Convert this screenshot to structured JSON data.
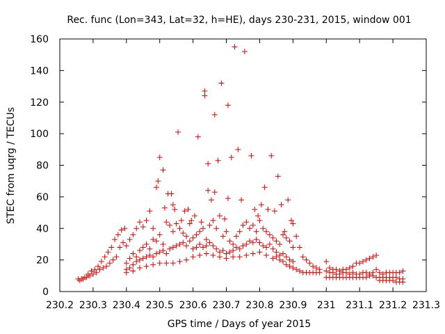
{
  "chart_data": {
    "type": "scatter",
    "title": "Rec. func (Lon=343, Lat=32, h=HE), days 230-231, 2015, window 001",
    "xlabel": "GPS time / Days of year 2015",
    "ylabel": "STEC from uqrg / TECUs",
    "xlim": [
      230.2,
      231.3
    ],
    "ylim": [
      0,
      160
    ],
    "xticks": [
      230.2,
      230.3,
      230.4,
      230.5,
      230.6,
      230.7,
      230.8,
      230.9,
      231,
      231.1,
      231.2,
      231.3
    ],
    "xtick_labels": [
      "230.2",
      "230.3",
      "230.4",
      "230.5",
      "230.6",
      "230.7",
      "230.8",
      "230.9",
      "231",
      "231.1",
      "231.2",
      "231.3"
    ],
    "yticks": [
      0,
      20,
      40,
      60,
      80,
      100,
      120,
      140,
      160
    ],
    "ytick_labels": [
      "0",
      "20",
      "40",
      "60",
      "80",
      "100",
      "120",
      "140",
      "160"
    ],
    "grid": false,
    "legend": "none",
    "marker": "+",
    "series": [
      {
        "color": "#e00000",
        "points": [
          [
            230.255,
            8
          ],
          [
            230.265,
            8
          ],
          [
            230.275,
            9
          ],
          [
            230.285,
            11
          ],
          [
            230.295,
            13
          ],
          [
            230.305,
            14
          ],
          [
            230.315,
            16
          ],
          [
            230.325,
            19
          ],
          [
            230.335,
            22
          ],
          [
            230.345,
            25
          ],
          [
            230.355,
            28
          ],
          [
            230.365,
            33
          ],
          [
            230.375,
            36
          ],
          [
            230.385,
            39
          ],
          [
            230.395,
            40
          ],
          [
            230.26,
            7
          ],
          [
            230.27,
            8
          ],
          [
            230.28,
            9
          ],
          [
            230.29,
            10
          ],
          [
            230.3,
            11
          ],
          [
            230.31,
            12
          ],
          [
            230.32,
            14
          ],
          [
            230.33,
            15
          ],
          [
            230.34,
            16
          ],
          [
            230.35,
            18
          ],
          [
            230.36,
            20
          ],
          [
            230.37,
            22
          ],
          [
            230.38,
            28
          ],
          [
            230.39,
            31
          ],
          [
            230.4,
            29
          ],
          [
            230.41,
            33
          ],
          [
            230.42,
            36
          ],
          [
            230.43,
            40
          ],
          [
            230.44,
            44
          ],
          [
            230.45,
            41
          ],
          [
            230.46,
            45
          ],
          [
            230.47,
            51
          ],
          [
            230.48,
            40
          ],
          [
            230.49,
            66
          ],
          [
            230.495,
            70
          ],
          [
            230.5,
            85
          ],
          [
            230.51,
            77
          ],
          [
            230.515,
            53
          ],
          [
            230.525,
            62
          ],
          [
            230.535,
            62
          ],
          [
            230.54,
            55
          ],
          [
            230.545,
            52
          ],
          [
            230.555,
            101
          ],
          [
            230.565,
            45
          ],
          [
            230.575,
            51
          ],
          [
            230.585,
            52
          ],
          [
            230.4,
            18
          ],
          [
            230.41,
            21
          ],
          [
            230.42,
            24
          ],
          [
            230.43,
            22
          ],
          [
            230.44,
            26
          ],
          [
            230.45,
            28
          ],
          [
            230.46,
            30
          ],
          [
            230.47,
            27
          ],
          [
            230.48,
            33
          ],
          [
            230.49,
            32
          ],
          [
            230.5,
            36
          ],
          [
            230.51,
            30
          ],
          [
            230.52,
            44
          ],
          [
            230.53,
            42
          ],
          [
            230.54,
            38
          ],
          [
            230.55,
            43
          ],
          [
            230.56,
            40
          ],
          [
            230.57,
            37
          ],
          [
            230.58,
            35
          ],
          [
            230.59,
            43
          ],
          [
            230.4,
            14
          ],
          [
            230.41,
            15
          ],
          [
            230.42,
            17
          ],
          [
            230.43,
            19
          ],
          [
            230.44,
            20
          ],
          [
            230.45,
            21
          ],
          [
            230.46,
            22
          ],
          [
            230.47,
            23
          ],
          [
            230.48,
            22
          ],
          [
            230.49,
            24
          ],
          [
            230.5,
            25
          ],
          [
            230.51,
            26
          ],
          [
            230.52,
            24
          ],
          [
            230.53,
            27
          ],
          [
            230.54,
            28
          ],
          [
            230.55,
            29
          ],
          [
            230.56,
            30
          ],
          [
            230.57,
            31
          ],
          [
            230.58,
            29
          ],
          [
            230.59,
            32
          ],
          [
            230.4,
            12
          ],
          [
            230.42,
            13
          ],
          [
            230.44,
            15
          ],
          [
            230.46,
            16
          ],
          [
            230.48,
            17
          ],
          [
            230.5,
            18
          ],
          [
            230.52,
            18
          ],
          [
            230.54,
            18
          ],
          [
            230.56,
            19
          ],
          [
            230.58,
            20
          ],
          [
            230.6,
            22
          ],
          [
            230.62,
            23
          ],
          [
            230.64,
            24
          ],
          [
            230.66,
            23
          ],
          [
            230.68,
            22
          ],
          [
            230.7,
            21
          ],
          [
            230.72,
            22
          ],
          [
            230.74,
            22
          ],
          [
            230.76,
            23
          ],
          [
            230.78,
            24
          ],
          [
            230.8,
            25
          ],
          [
            230.82,
            23
          ],
          [
            230.84,
            21
          ],
          [
            230.595,
            45
          ],
          [
            230.605,
            48
          ],
          [
            230.615,
            98
          ],
          [
            230.625,
            44
          ],
          [
            230.635,
            124
          ],
          [
            230.635,
            127
          ],
          [
            230.645,
            81
          ],
          [
            230.645,
            64
          ],
          [
            230.655,
            58
          ],
          [
            230.665,
            112
          ],
          [
            230.665,
            63
          ],
          [
            230.675,
            83
          ],
          [
            230.685,
            132
          ],
          [
            230.695,
            46
          ],
          [
            230.705,
            118
          ],
          [
            230.705,
            59
          ],
          [
            230.715,
            85
          ],
          [
            230.725,
            155
          ],
          [
            230.735,
            90
          ],
          [
            230.745,
            58
          ],
          [
            230.755,
            152
          ],
          [
            230.775,
            86
          ],
          [
            230.785,
            52
          ],
          [
            230.795,
            48
          ],
          [
            230.805,
            55
          ],
          [
            230.815,
            66
          ],
          [
            230.825,
            52
          ],
          [
            230.835,
            86
          ],
          [
            230.845,
            51
          ],
          [
            230.855,
            73
          ],
          [
            230.865,
            55
          ],
          [
            230.875,
            38
          ],
          [
            230.885,
            58
          ],
          [
            230.895,
            45
          ],
          [
            230.6,
            34
          ],
          [
            230.61,
            36
          ],
          [
            230.62,
            38
          ],
          [
            230.63,
            40
          ],
          [
            230.64,
            33
          ],
          [
            230.65,
            42
          ],
          [
            230.66,
            45
          ],
          [
            230.67,
            40
          ],
          [
            230.68,
            48
          ],
          [
            230.69,
            35
          ],
          [
            230.7,
            38
          ],
          [
            230.71,
            32
          ],
          [
            230.72,
            30
          ],
          [
            230.73,
            35
          ],
          [
            230.74,
            38
          ],
          [
            230.75,
            42
          ],
          [
            230.76,
            44
          ],
          [
            230.77,
            40
          ],
          [
            230.78,
            42
          ],
          [
            230.79,
            38
          ],
          [
            230.8,
            45
          ],
          [
            230.81,
            40
          ],
          [
            230.82,
            38
          ],
          [
            230.83,
            36
          ],
          [
            230.84,
            34
          ],
          [
            230.85,
            32
          ],
          [
            230.86,
            30
          ],
          [
            230.87,
            36
          ],
          [
            230.88,
            34
          ],
          [
            230.89,
            32
          ],
          [
            230.9,
            43
          ],
          [
            230.6,
            27
          ],
          [
            230.61,
            28
          ],
          [
            230.62,
            30
          ],
          [
            230.63,
            28
          ],
          [
            230.64,
            29
          ],
          [
            230.65,
            31
          ],
          [
            230.66,
            29
          ],
          [
            230.67,
            27
          ],
          [
            230.68,
            25
          ],
          [
            230.69,
            26
          ],
          [
            230.7,
            24
          ],
          [
            230.71,
            25
          ],
          [
            230.72,
            26
          ],
          [
            230.73,
            28
          ],
          [
            230.74,
            27
          ],
          [
            230.75,
            29
          ],
          [
            230.76,
            30
          ],
          [
            230.77,
            32
          ],
          [
            230.78,
            31
          ],
          [
            230.79,
            33
          ],
          [
            230.8,
            31
          ],
          [
            230.81,
            29
          ],
          [
            230.82,
            28
          ],
          [
            230.83,
            30
          ],
          [
            230.84,
            27
          ],
          [
            230.85,
            25
          ],
          [
            230.86,
            23
          ],
          [
            230.87,
            24
          ],
          [
            230.88,
            22
          ],
          [
            230.89,
            20
          ],
          [
            230.9,
            19
          ],
          [
            230.85,
            22
          ],
          [
            230.86,
            20
          ],
          [
            230.87,
            19
          ],
          [
            230.88,
            17
          ],
          [
            230.89,
            16
          ],
          [
            230.9,
            15
          ],
          [
            230.91,
            14
          ],
          [
            230.92,
            13
          ],
          [
            230.93,
            12
          ],
          [
            230.94,
            12
          ],
          [
            230.95,
            12
          ],
          [
            230.96,
            12
          ],
          [
            230.97,
            12
          ],
          [
            230.98,
            12
          ],
          [
            230.9,
            28
          ],
          [
            230.91,
            35
          ],
          [
            230.92,
            28
          ],
          [
            230.93,
            22
          ],
          [
            230.94,
            20
          ],
          [
            230.95,
            18
          ],
          [
            230.96,
            16
          ],
          [
            230.97,
            15
          ],
          [
            230.98,
            14
          ],
          [
            231.0,
            19
          ],
          [
            231.01,
            15
          ],
          [
            231.02,
            14
          ],
          [
            231.03,
            14
          ],
          [
            231.04,
            13
          ],
          [
            231.05,
            14
          ],
          [
            231.06,
            14
          ],
          [
            231.07,
            15
          ],
          [
            231.08,
            16
          ],
          [
            231.09,
            18
          ],
          [
            231.1,
            18
          ],
          [
            231.11,
            19
          ],
          [
            231.12,
            20
          ],
          [
            231.13,
            21
          ],
          [
            231.14,
            22
          ],
          [
            231.15,
            23
          ],
          [
            231.0,
            13
          ],
          [
            231.01,
            12
          ],
          [
            231.02,
            12
          ],
          [
            231.03,
            11
          ],
          [
            231.04,
            11
          ],
          [
            231.05,
            12
          ],
          [
            231.06,
            12
          ],
          [
            231.07,
            11
          ],
          [
            231.08,
            12
          ],
          [
            231.09,
            11
          ],
          [
            231.1,
            11
          ],
          [
            231.11,
            12
          ],
          [
            231.12,
            12
          ],
          [
            231.13,
            11
          ],
          [
            231.14,
            12
          ],
          [
            231.15,
            14
          ],
          [
            231.16,
            12
          ],
          [
            231.17,
            11
          ],
          [
            231.18,
            12
          ],
          [
            231.19,
            12
          ],
          [
            231.2,
            12
          ],
          [
            231.21,
            12
          ],
          [
            231.22,
            12
          ],
          [
            231.23,
            13
          ],
          [
            231.0,
            9
          ],
          [
            231.01,
            9
          ],
          [
            231.02,
            9
          ],
          [
            231.03,
            9
          ],
          [
            231.04,
            9
          ],
          [
            231.05,
            9
          ],
          [
            231.06,
            9
          ],
          [
            231.07,
            9
          ],
          [
            231.08,
            9
          ],
          [
            231.09,
            9
          ],
          [
            231.1,
            9
          ],
          [
            231.11,
            9
          ],
          [
            231.12,
            9
          ],
          [
            231.13,
            10
          ],
          [
            231.14,
            10
          ],
          [
            231.15,
            9
          ],
          [
            231.16,
            9
          ],
          [
            231.17,
            9
          ],
          [
            231.18,
            9
          ],
          [
            231.19,
            9
          ],
          [
            231.2,
            9
          ],
          [
            231.21,
            9
          ],
          [
            231.22,
            8
          ],
          [
            231.23,
            8
          ],
          [
            231.16,
            7
          ],
          [
            231.17,
            7
          ],
          [
            231.18,
            7
          ],
          [
            231.19,
            7
          ],
          [
            231.2,
            7
          ],
          [
            231.21,
            6
          ],
          [
            231.22,
            6
          ],
          [
            231.23,
            6
          ]
        ]
      }
    ]
  }
}
